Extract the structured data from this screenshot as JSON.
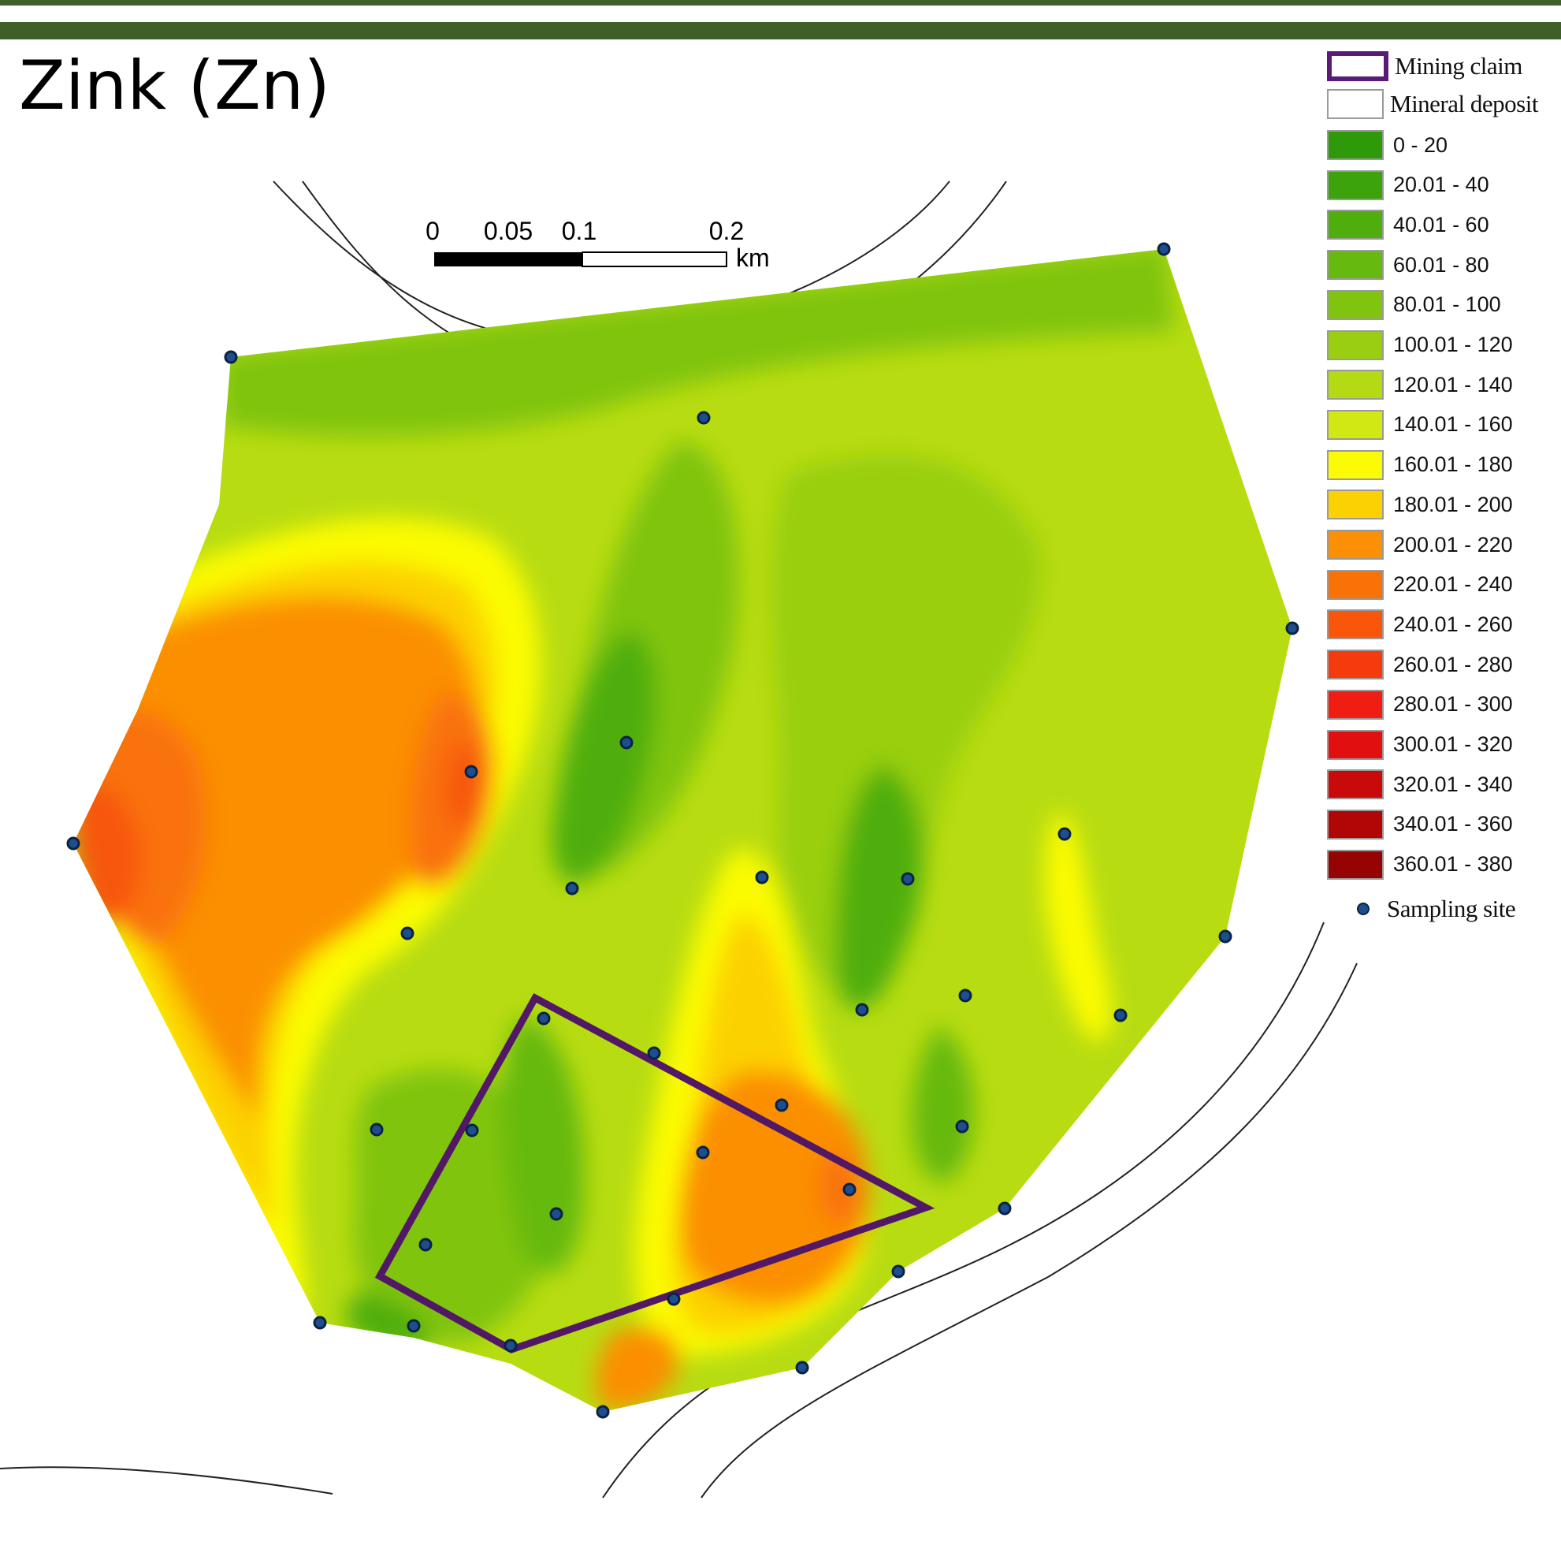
{
  "title": "Zink (Zn)",
  "scale_bar": {
    "ticks": [
      "0",
      "0.05",
      "0.1",
      "0.2"
    ],
    "unit": "km"
  },
  "legend": {
    "mining_claim": {
      "label": "Mining claim",
      "color": "#5a1a78"
    },
    "mineral_deposit": {
      "label": "Mineral deposit",
      "color": "#ffffff"
    },
    "classes": [
      {
        "label": "0 - 20",
        "color": "#2e9a0a"
      },
      {
        "label": "20.01 - 40",
        "color": "#3ca30c"
      },
      {
        "label": "40.01 - 60",
        "color": "#4fae0d"
      },
      {
        "label": "60.01 - 80",
        "color": "#66b90e"
      },
      {
        "label": "80.01 - 100",
        "color": "#80c40f"
      },
      {
        "label": "100.01 - 120",
        "color": "#99cf10"
      },
      {
        "label": "120.01 - 140",
        "color": "#b3da12"
      },
      {
        "label": "140.01 - 160",
        "color": "#d2e814"
      },
      {
        "label": "160.01 - 180",
        "color": "#fbfb06"
      },
      {
        "label": "180.01 - 200",
        "color": "#fcd104"
      },
      {
        "label": "200.01 - 220",
        "color": "#fb8f05"
      },
      {
        "label": "220.01 - 240",
        "color": "#f97208"
      },
      {
        "label": "240.01 - 260",
        "color": "#f7560b"
      },
      {
        "label": "260.01 - 280",
        "color": "#f53a0e"
      },
      {
        "label": "280.01 - 300",
        "color": "#f01e12"
      },
      {
        "label": "300.01 - 320",
        "color": "#e10f0f"
      },
      {
        "label": "320.01 - 340",
        "color": "#c80a0a"
      },
      {
        "label": "340.01 - 360",
        "color": "#b00606"
      },
      {
        "label": "360.01 - 380",
        "color": "#960303"
      }
    ],
    "sampling_site": {
      "label": "Sampling site",
      "color": "#1f4e8c"
    }
  }
}
